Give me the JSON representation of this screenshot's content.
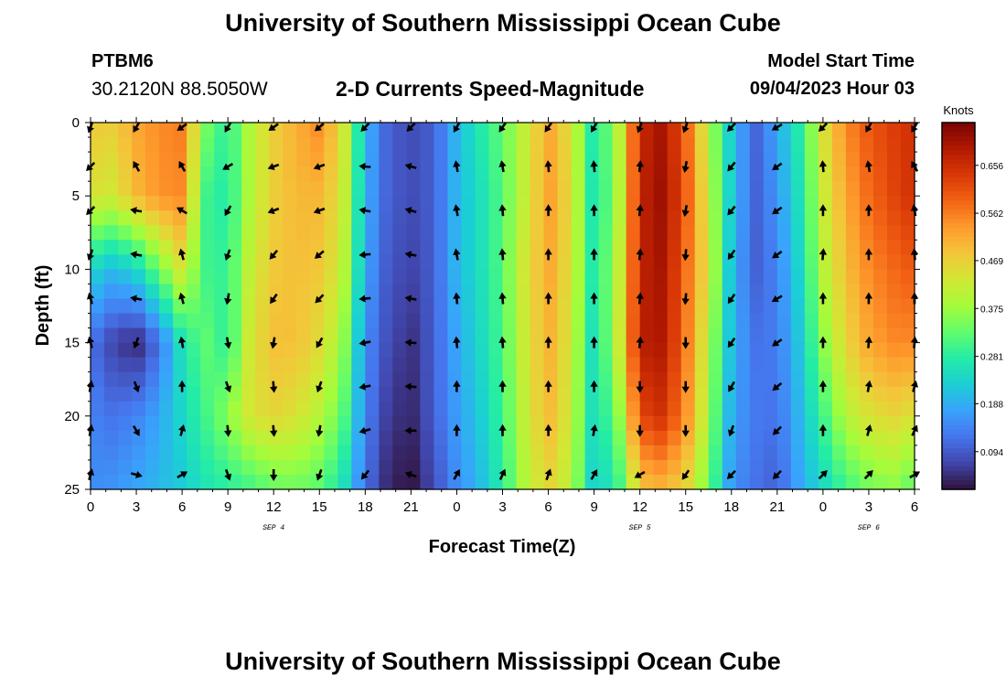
{
  "header": {
    "title": "University of Southern Mississippi Ocean Cube",
    "station": "PTBM6",
    "coordinates": "30.2120N  88.5050W",
    "subtitle": "2-D Currents Speed-Magnitude",
    "start_label": "Model Start Time",
    "start_value": "09/04/2023 Hour 03"
  },
  "footer": {
    "title": "University of Southern Mississippi Ocean Cube"
  },
  "chart_data": {
    "type": "heatmap",
    "title": "2-D Currents Speed-Magnitude",
    "xlabel": "Forecast Time(Z)",
    "ylabel": "Depth (ft)",
    "x_ticks": [
      "0",
      "3",
      "6",
      "9",
      "12",
      "15",
      "18",
      "21",
      "0",
      "3",
      "6",
      "9",
      "12",
      "15",
      "18",
      "21",
      "0",
      "3",
      "6"
    ],
    "x_range_hours": [
      0,
      54
    ],
    "date_labels": [
      {
        "text": "SEP 4",
        "hour": 12
      },
      {
        "text": "SEP 5",
        "hour": 36
      },
      {
        "text": "SEP 6",
        "hour": 51
      }
    ],
    "y_ticks": [
      0,
      5,
      10,
      15,
      20,
      25
    ],
    "ylim": [
      0,
      25
    ],
    "colorbar": {
      "label": "Knots",
      "ticks": [
        "0.656",
        "0.562",
        "0.469",
        "0.375",
        "0.281",
        "0.188",
        "0.094"
      ],
      "range": [
        0.02,
        0.74
      ],
      "colors": [
        "#30123b",
        "#4145ab",
        "#4675ed",
        "#39a2fc",
        "#1bcfd4",
        "#24eca6",
        "#61fc6c",
        "#a4fc3b",
        "#d1e834",
        "#f3c63a",
        "#fe9b2d",
        "#f36315",
        "#d93806",
        "#b11901",
        "#7a0403"
      ]
    },
    "speed_hours": [
      0,
      1.5,
      3,
      4.5,
      6,
      7.5,
      9,
      10.5,
      12,
      13.5,
      15,
      16.5,
      18,
      19.5,
      21,
      22.5,
      24,
      25.5,
      27,
      28.5,
      30,
      31.5,
      33,
      34.5,
      36,
      37.5,
      39,
      40.5,
      42,
      43.5,
      45,
      46.5,
      48,
      49.5,
      51,
      52.5,
      54
    ],
    "speed_depths": [
      0,
      5,
      10,
      15,
      20,
      25
    ],
    "speed": [
      [
        0.48,
        0.47,
        0.52,
        0.55,
        0.56,
        0.35,
        0.28,
        0.4,
        0.47,
        0.51,
        0.55,
        0.45,
        0.2,
        0.1,
        0.08,
        0.1,
        0.2,
        0.27,
        0.33,
        0.42,
        0.52,
        0.44,
        0.26,
        0.38,
        0.66,
        0.7,
        0.59,
        0.4,
        0.22,
        0.1,
        0.18,
        0.28,
        0.44,
        0.55,
        0.6,
        0.63,
        0.65
      ],
      [
        0.44,
        0.43,
        0.5,
        0.54,
        0.55,
        0.3,
        0.27,
        0.4,
        0.47,
        0.5,
        0.5,
        0.44,
        0.19,
        0.1,
        0.08,
        0.1,
        0.2,
        0.25,
        0.32,
        0.42,
        0.53,
        0.45,
        0.25,
        0.37,
        0.67,
        0.71,
        0.6,
        0.42,
        0.22,
        0.1,
        0.16,
        0.26,
        0.42,
        0.52,
        0.58,
        0.62,
        0.65
      ],
      [
        0.24,
        0.2,
        0.24,
        0.34,
        0.44,
        0.3,
        0.29,
        0.42,
        0.48,
        0.49,
        0.48,
        0.42,
        0.18,
        0.09,
        0.07,
        0.1,
        0.2,
        0.25,
        0.32,
        0.44,
        0.52,
        0.44,
        0.26,
        0.39,
        0.67,
        0.7,
        0.58,
        0.44,
        0.2,
        0.1,
        0.14,
        0.24,
        0.4,
        0.49,
        0.55,
        0.58,
        0.6
      ],
      [
        0.12,
        0.07,
        0.04,
        0.12,
        0.26,
        0.33,
        0.28,
        0.44,
        0.49,
        0.49,
        0.45,
        0.38,
        0.15,
        0.08,
        0.05,
        0.1,
        0.18,
        0.24,
        0.31,
        0.43,
        0.51,
        0.43,
        0.24,
        0.4,
        0.68,
        0.69,
        0.57,
        0.4,
        0.2,
        0.12,
        0.13,
        0.22,
        0.36,
        0.46,
        0.52,
        0.55,
        0.55
      ],
      [
        0.14,
        0.12,
        0.14,
        0.18,
        0.24,
        0.3,
        0.36,
        0.44,
        0.46,
        0.44,
        0.4,
        0.33,
        0.14,
        0.06,
        0.04,
        0.1,
        0.17,
        0.22,
        0.3,
        0.42,
        0.5,
        0.42,
        0.24,
        0.34,
        0.62,
        0.65,
        0.55,
        0.38,
        0.18,
        0.13,
        0.12,
        0.2,
        0.3,
        0.4,
        0.44,
        0.46,
        0.44
      ],
      [
        0.15,
        0.16,
        0.18,
        0.2,
        0.22,
        0.26,
        0.28,
        0.3,
        0.33,
        0.34,
        0.32,
        0.26,
        0.12,
        0.04,
        0.02,
        0.08,
        0.15,
        0.2,
        0.28,
        0.4,
        0.46,
        0.4,
        0.22,
        0.28,
        0.48,
        0.5,
        0.46,
        0.34,
        0.16,
        0.12,
        0.1,
        0.18,
        0.24,
        0.3,
        0.34,
        0.36,
        0.32
      ]
    ],
    "arrow_hours": [
      0,
      3,
      6,
      9,
      12,
      15,
      18,
      21,
      24,
      27,
      30,
      33,
      36,
      39,
      42,
      45,
      48,
      51,
      54
    ],
    "arrow_depths": [
      0,
      3,
      6,
      9,
      12,
      15,
      18,
      21,
      24
    ],
    "arrow_directions_deg": [
      [
        200,
        210,
        235,
        210,
        235,
        230,
        225,
        225,
        210,
        215,
        215,
        210,
        200,
        200,
        225,
        240,
        225,
        210,
        210
      ],
      [
        225,
        330,
        330,
        240,
        250,
        250,
        275,
        285,
        350,
        350,
        355,
        355,
        5,
        190,
        220,
        235,
        355,
        350,
        330
      ],
      [
        225,
        280,
        300,
        210,
        250,
        250,
        280,
        285,
        350,
        355,
        0,
        0,
        5,
        190,
        220,
        235,
        0,
        0,
        350
      ],
      [
        200,
        280,
        345,
        200,
        220,
        230,
        265,
        280,
        350,
        355,
        0,
        0,
        5,
        185,
        215,
        235,
        5,
        0,
        355
      ],
      [
        345,
        280,
        345,
        190,
        215,
        225,
        265,
        280,
        355,
        355,
        0,
        0,
        5,
        185,
        215,
        240,
        0,
        0,
        0
      ],
      [
        345,
        200,
        350,
        170,
        190,
        210,
        260,
        275,
        355,
        355,
        0,
        0,
        5,
        180,
        215,
        235,
        0,
        5,
        5
      ],
      [
        10,
        160,
        0,
        160,
        175,
        200,
        260,
        275,
        0,
        0,
        0,
        0,
        180,
        180,
        210,
        230,
        0,
        10,
        15
      ],
      [
        10,
        150,
        15,
        175,
        175,
        190,
        255,
        270,
        0,
        0,
        0,
        10,
        180,
        180,
        200,
        225,
        0,
        15,
        25
      ],
      [
        15,
        105,
        60,
        160,
        180,
        200,
        220,
        290,
        30,
        25,
        20,
        30,
        240,
        215,
        225,
        225,
        45,
        45,
        60
      ]
    ]
  }
}
